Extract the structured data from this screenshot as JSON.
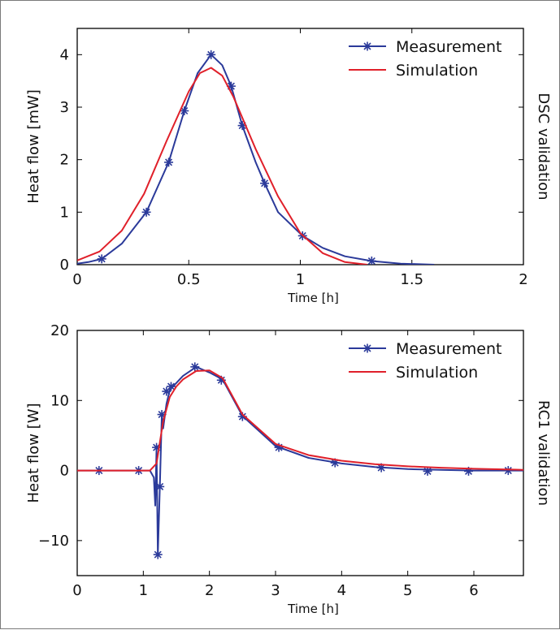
{
  "colors": {
    "measurement": "#2b3a9a",
    "simulation": "#e0202a",
    "axis": "#000000"
  },
  "legend": {
    "measurement": "Measurement",
    "simulation": "Simulation"
  },
  "chart_data": [
    {
      "type": "line",
      "side_label": "DSC validation",
      "xlabel": "Time [h]",
      "ylabel": "Heat flow [mW]",
      "xlim": [
        0,
        2
      ],
      "ylim": [
        0,
        4.5
      ],
      "xticks": [
        0,
        0.5,
        1,
        1.5,
        2
      ],
      "yticks": [
        0,
        1,
        2,
        3,
        4
      ],
      "xtick_labels": [
        "0",
        "0.5",
        "1",
        "1.5",
        "2"
      ],
      "ytick_labels": [
        "0",
        "1",
        "2",
        "3",
        "4"
      ],
      "legend_position": "top-right",
      "series": [
        {
          "name": "Measurement",
          "style": "line-with-star-markers",
          "x": [
            0.0,
            0.05,
            0.11,
            0.2,
            0.31,
            0.41,
            0.48,
            0.54,
            0.6,
            0.65,
            0.69,
            0.74,
            0.8,
            0.84,
            0.9,
            1.01,
            1.1,
            1.2,
            1.32,
            1.45,
            1.6
          ],
          "y": [
            0.02,
            0.05,
            0.11,
            0.4,
            1.0,
            1.95,
            2.93,
            3.65,
            4.0,
            3.8,
            3.4,
            2.65,
            1.95,
            1.55,
            1.0,
            0.55,
            0.32,
            0.16,
            0.07,
            0.02,
            0.0
          ],
          "markers": {
            "x": [
              0.11,
              0.31,
              0.41,
              0.48,
              0.6,
              0.69,
              0.74,
              0.84,
              1.01,
              1.32
            ],
            "y": [
              0.11,
              1.0,
              1.95,
              2.93,
              4.0,
              3.4,
              2.65,
              1.55,
              0.55,
              0.07
            ]
          }
        },
        {
          "name": "Simulation",
          "style": "line",
          "x": [
            0.0,
            0.1,
            0.2,
            0.3,
            0.4,
            0.5,
            0.55,
            0.6,
            0.65,
            0.7,
            0.8,
            0.9,
            1.0,
            1.1,
            1.2,
            1.3
          ],
          "y": [
            0.08,
            0.25,
            0.65,
            1.35,
            2.35,
            3.3,
            3.65,
            3.75,
            3.6,
            3.2,
            2.2,
            1.3,
            0.6,
            0.22,
            0.05,
            0.0
          ]
        }
      ]
    },
    {
      "type": "line",
      "side_label": "RC1 validation",
      "xlabel": "Time [h]",
      "ylabel": "Heat flow [W]",
      "xlim": [
        0,
        6.75
      ],
      "ylim": [
        -15,
        20
      ],
      "xticks": [
        0,
        1,
        2,
        3,
        4,
        5,
        6
      ],
      "yticks": [
        -10,
        0,
        10,
        20
      ],
      "xtick_labels": [
        "0",
        "1",
        "2",
        "3",
        "4",
        "5",
        "6"
      ],
      "ytick_labels": [
        "−10",
        "0",
        "10",
        "20"
      ],
      "legend_position": "top-right",
      "series": [
        {
          "name": "Measurement",
          "style": "line-with-star-markers",
          "x": [
            0.0,
            1.0,
            1.1,
            1.16,
            1.18,
            1.2,
            1.22,
            1.25,
            1.28,
            1.3,
            1.35,
            1.4,
            1.5,
            1.6,
            1.8,
            2.0,
            2.2,
            2.5,
            3.0,
            3.5,
            4.0,
            4.5,
            5.0,
            5.5,
            6.0,
            6.5,
            6.75
          ],
          "y": [
            0.0,
            0.0,
            0.0,
            -1.0,
            -5.0,
            3.2,
            -12.0,
            -2.2,
            8.0,
            6.0,
            9.5,
            11.5,
            12.5,
            13.5,
            14.8,
            14.0,
            13.0,
            7.8,
            3.5,
            1.8,
            1.0,
            0.5,
            0.2,
            0.1,
            0.0,
            0.0,
            0.0
          ],
          "markers": {
            "x": [
              0.33,
              0.93,
              1.2,
              1.22,
              1.25,
              1.28,
              1.35,
              1.42,
              1.78,
              2.18,
              2.5,
              3.05,
              3.9,
              4.6,
              5.3,
              5.92,
              6.52
            ],
            "y": [
              0.0,
              0.0,
              3.3,
              -12.0,
              -2.3,
              8.0,
              11.3,
              12.0,
              14.8,
              12.9,
              7.7,
              3.3,
              1.1,
              0.4,
              -0.1,
              -0.1,
              0.0
            ]
          }
        },
        {
          "name": "Simulation",
          "style": "line",
          "x": [
            0.0,
            1.1,
            1.2,
            1.3,
            1.4,
            1.5,
            1.6,
            1.8,
            2.0,
            2.2,
            2.5,
            3.0,
            3.5,
            4.0,
            4.5,
            5.0,
            5.5,
            6.0,
            6.5,
            6.75
          ],
          "y": [
            0.0,
            0.0,
            1.0,
            7.0,
            10.5,
            12.0,
            13.0,
            14.2,
            14.3,
            13.2,
            8.0,
            3.8,
            2.2,
            1.4,
            0.9,
            0.6,
            0.4,
            0.25,
            0.15,
            0.1
          ]
        }
      ]
    }
  ]
}
